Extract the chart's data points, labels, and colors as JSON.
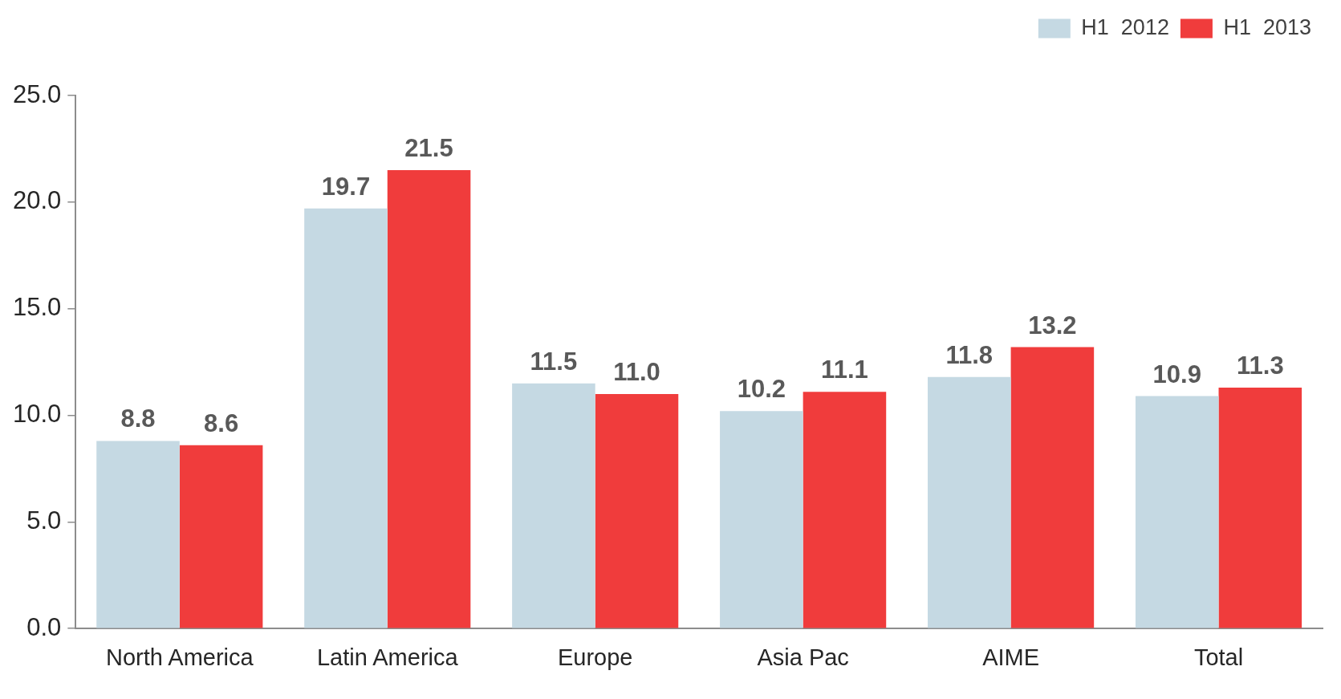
{
  "chart_data": {
    "type": "bar",
    "categories": [
      "North America",
      "Latin America",
      "Europe",
      "Asia Pac",
      "AIME",
      "Total"
    ],
    "series": [
      {
        "name": "H1  2012",
        "color": "#c5d9e3",
        "values": [
          8.8,
          19.7,
          11.5,
          10.2,
          11.8,
          10.9
        ],
        "value_labels": [
          "8.8",
          "19.7",
          "11.5",
          "10.2",
          "11.8",
          "10.9"
        ]
      },
      {
        "name": "H1  2013",
        "color": "#f03c3c",
        "values": [
          8.6,
          21.5,
          11.0,
          11.1,
          13.2,
          11.3
        ],
        "value_labels": [
          "8.6",
          "21.5",
          "11.0",
          "11.1",
          "13.2",
          "11.3"
        ]
      }
    ],
    "ylim": [
      0,
      25
    ],
    "yticks": [
      {
        "value": 0,
        "label": "0.0"
      },
      {
        "value": 5,
        "label": "5.0"
      },
      {
        "value": 10,
        "label": "10.0"
      },
      {
        "value": 15,
        "label": "15.0"
      },
      {
        "value": 20,
        "label": "20.0"
      },
      {
        "value": 25,
        "label": "25.0"
      }
    ],
    "grid": false,
    "legend": "top right"
  }
}
